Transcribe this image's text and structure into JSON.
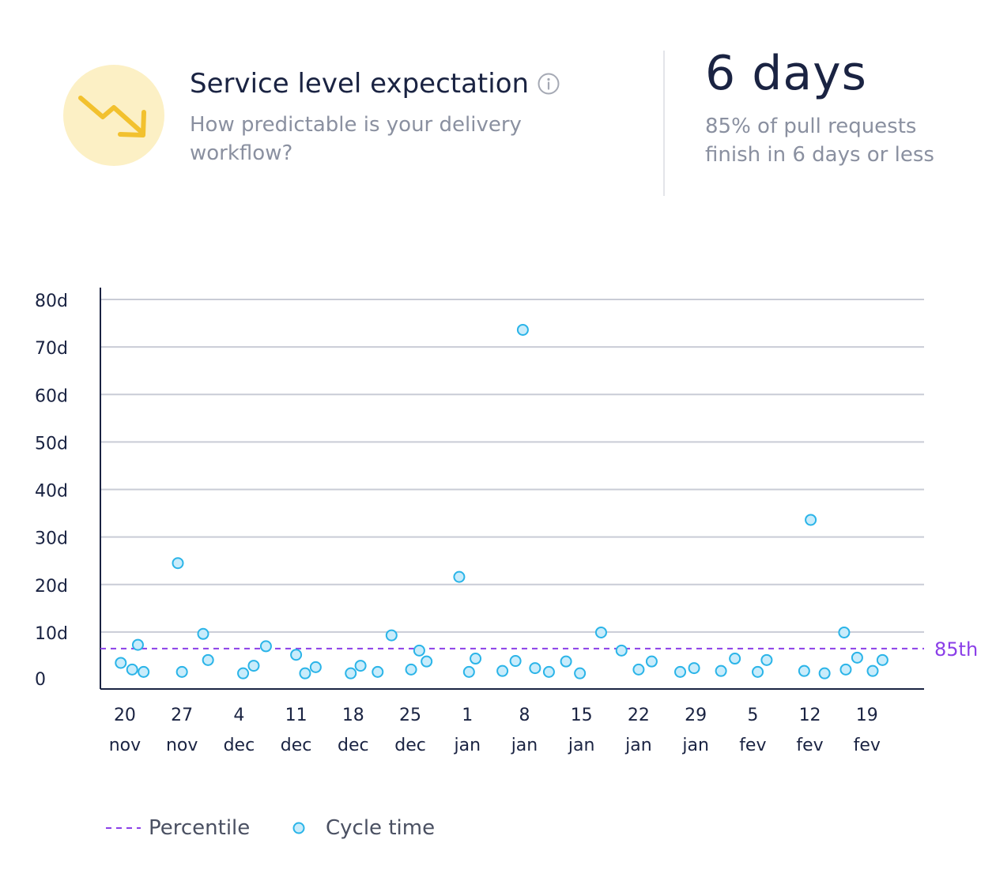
{
  "header": {
    "icon": "trend-down-arrow-icon",
    "icon_colors": {
      "background": "#fcf0c5",
      "arrow": "#f2c12e"
    },
    "title": "Service level expectation",
    "info_icon": "info-icon",
    "subtitle": "How predictable is your delivery workflow?"
  },
  "metric": {
    "value": "6 days",
    "description": "85% of pull requests finish in 6 days or less"
  },
  "legend": {
    "percentile_label": "Percentile",
    "cycle_time_label": "Cycle time"
  },
  "chart_data": {
    "type": "scatter",
    "ylim": [
      0,
      80
    ],
    "yticks": [
      {
        "v": 80,
        "label": "80d"
      },
      {
        "v": 70,
        "label": "70d"
      },
      {
        "v": 60,
        "label": "60d"
      },
      {
        "v": 50,
        "label": "50d"
      },
      {
        "v": 40,
        "label": "40d"
      },
      {
        "v": 30,
        "label": "30d"
      },
      {
        "v": 20,
        "label": "20d"
      },
      {
        "v": 10,
        "label": "10d"
      },
      {
        "v": 0,
        "label": "0"
      }
    ],
    "xlim": [
      -3,
      98
    ],
    "xticks": [
      {
        "x": 0,
        "day": "20",
        "month": "nov"
      },
      {
        "x": 7,
        "day": "27",
        "month": "nov"
      },
      {
        "x": 14,
        "day": "4",
        "month": "dec"
      },
      {
        "x": 21,
        "day": "11",
        "month": "dec"
      },
      {
        "x": 28,
        "day": "18",
        "month": "dec"
      },
      {
        "x": 35,
        "day": "25",
        "month": "dec"
      },
      {
        "x": 42,
        "day": "1",
        "month": "jan"
      },
      {
        "x": 49,
        "day": "8",
        "month": "jan"
      },
      {
        "x": 56,
        "day": "15",
        "month": "jan"
      },
      {
        "x": 63,
        "day": "22",
        "month": "jan"
      },
      {
        "x": 70,
        "day": "29",
        "month": "jan"
      },
      {
        "x": 77,
        "day": "5",
        "month": "fev"
      },
      {
        "x": 84,
        "day": "12",
        "month": "fev"
      },
      {
        "x": 91,
        "day": "19",
        "month": "fev"
      }
    ],
    "grid": true,
    "percentile": {
      "value": 6.5,
      "label": "85th",
      "color": "#8b3fe8"
    },
    "series": [
      {
        "color": "#2ab4e8",
        "fill": "#c9ecfb",
        "points": [
          [
            -0.5,
            3.5
          ],
          [
            0.9,
            2.1
          ],
          [
            1.6,
            7.3
          ],
          [
            2.3,
            1.6
          ],
          [
            6.5,
            24.5
          ],
          [
            7.0,
            1.6
          ],
          [
            9.6,
            9.6
          ],
          [
            10.2,
            4.1
          ],
          [
            14.5,
            1.3
          ],
          [
            15.8,
            2.9
          ],
          [
            17.3,
            7.0
          ],
          [
            21.0,
            5.2
          ],
          [
            22.1,
            1.3
          ],
          [
            23.4,
            2.6
          ],
          [
            27.7,
            1.3
          ],
          [
            28.9,
            2.9
          ],
          [
            31.0,
            1.6
          ],
          [
            32.7,
            9.3
          ],
          [
            36.1,
            6.1
          ],
          [
            35.1,
            2.1
          ],
          [
            37.0,
            3.8
          ],
          [
            41.0,
            21.6
          ],
          [
            42.2,
            1.6
          ],
          [
            43.0,
            4.4
          ],
          [
            46.3,
            1.8
          ],
          [
            47.9,
            3.9
          ],
          [
            48.8,
            73.6
          ],
          [
            50.3,
            2.4
          ],
          [
            52.0,
            1.6
          ],
          [
            54.1,
            3.8
          ],
          [
            55.8,
            1.3
          ],
          [
            58.4,
            9.9
          ],
          [
            60.9,
            6.1
          ],
          [
            63.0,
            2.1
          ],
          [
            64.6,
            3.8
          ],
          [
            68.1,
            1.6
          ],
          [
            69.8,
            2.4
          ],
          [
            73.1,
            1.8
          ],
          [
            74.8,
            4.4
          ],
          [
            77.6,
            1.6
          ],
          [
            78.7,
            4.1
          ],
          [
            83.3,
            1.8
          ],
          [
            84.1,
            33.6
          ],
          [
            85.8,
            1.3
          ],
          [
            88.2,
            9.9
          ],
          [
            88.4,
            2.1
          ],
          [
            89.8,
            4.6
          ],
          [
            91.7,
            1.8
          ],
          [
            92.9,
            4.1
          ]
        ]
      }
    ]
  }
}
